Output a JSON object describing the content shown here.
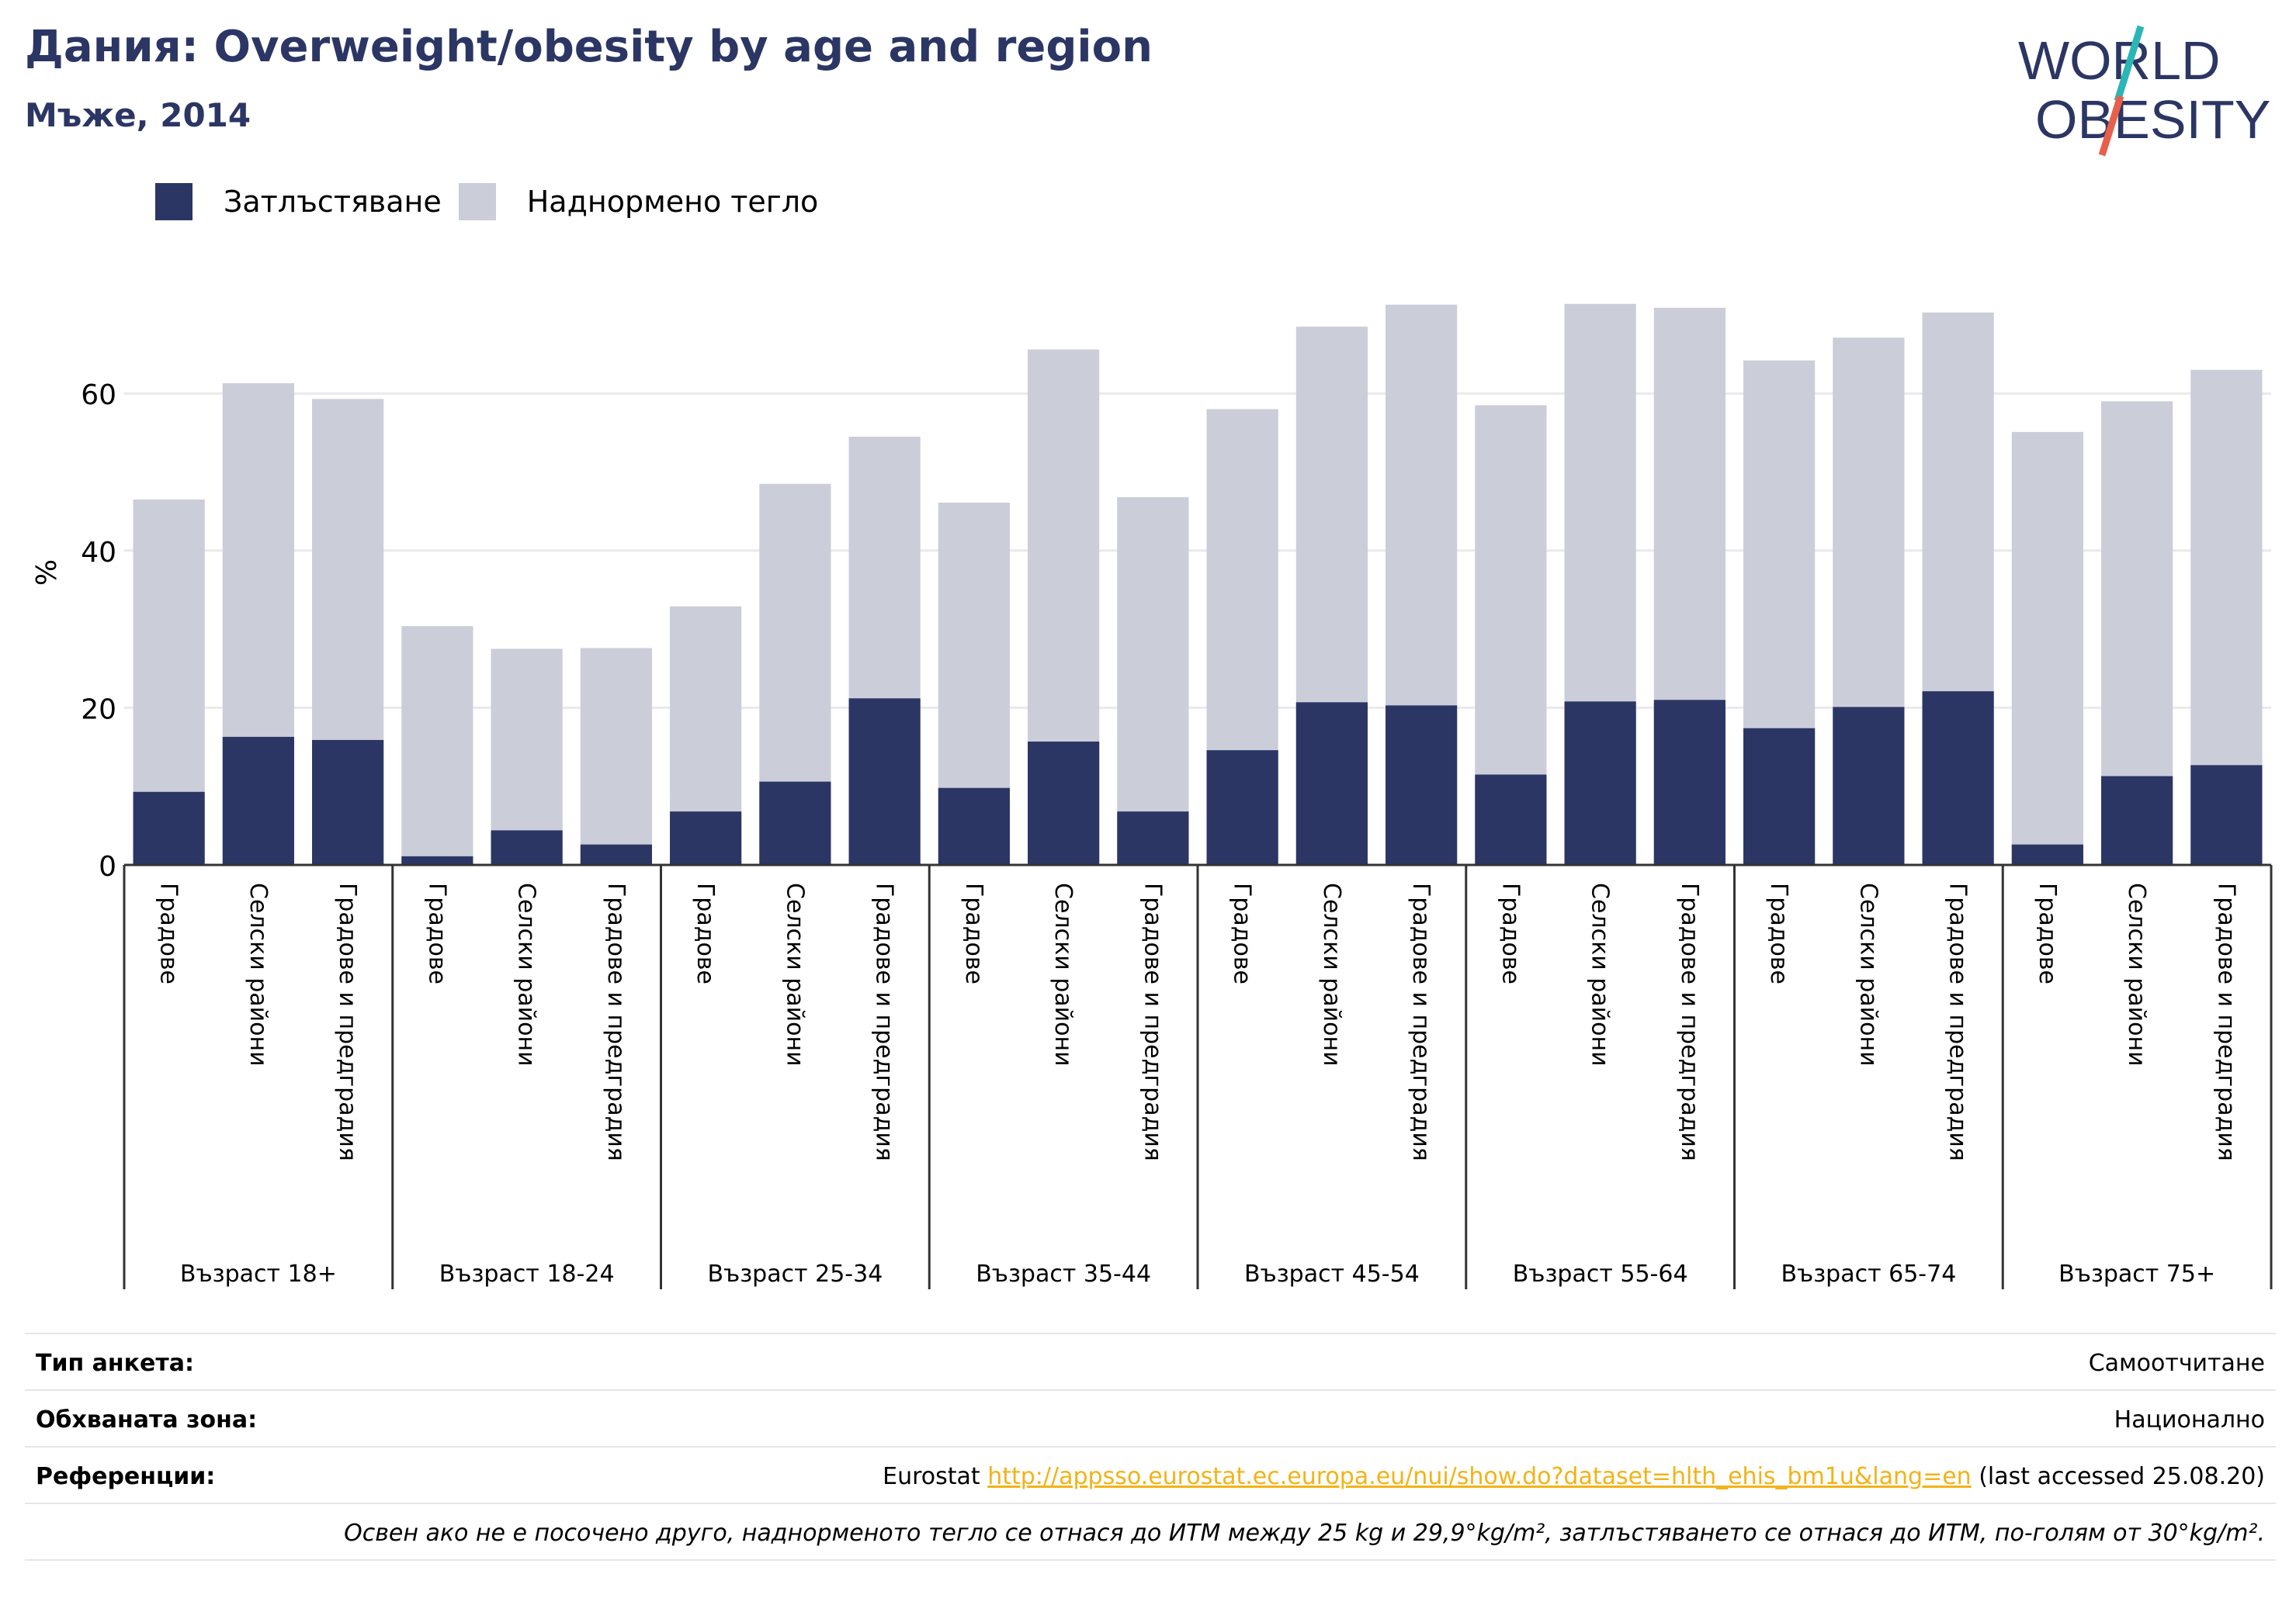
{
  "header": {
    "title": "Дания: Overweight/obesity by age and region",
    "subtitle": "Мъже, 2014"
  },
  "logo": {
    "line1": "WORLD",
    "line2": "OBESITY",
    "colors": {
      "text": "#2b3664",
      "slash_top": "#2bb5b5",
      "slash_bottom": "#e8604c"
    }
  },
  "legend": [
    {
      "label": "Затлъстяване",
      "color": "#2b3664"
    },
    {
      "label": "Наднормено тегло",
      "color": "#cbcdd9"
    }
  ],
  "chart_data": {
    "type": "bar",
    "stacked": false,
    "ylabel": "%",
    "ylim": [
      0,
      75
    ],
    "yticks": [
      0,
      20,
      40,
      60
    ],
    "grid": true,
    "legend_position": "top-left",
    "groups": [
      "Възраст 18+",
      "Възраст 18-24",
      "Възраст 25-34",
      "Възраст 35-44",
      "Възраст 45-54",
      "Възраст 55-64",
      "Възраст 65-74",
      "Възраст 75+"
    ],
    "subcategories": [
      "Градове",
      "Селски райони",
      "Градове и предградия"
    ],
    "series": [
      {
        "name": "Наднормено тегло",
        "color": "#cbcdd9",
        "values": [
          46.5,
          61.3,
          59.3,
          30.4,
          27.5,
          27.6,
          32.9,
          48.5,
          54.5,
          46.1,
          65.6,
          46.8,
          58,
          68.5,
          71.3,
          58.5,
          71.4,
          70.9,
          64.2,
          67.1,
          70.3,
          55.1,
          59,
          63
        ]
      },
      {
        "name": "Затлъстяване",
        "color": "#2b3664",
        "values": [
          9.3,
          16.3,
          15.9,
          1.1,
          4.4,
          2.6,
          6.8,
          10.6,
          21.2,
          9.8,
          15.7,
          6.8,
          14.6,
          20.7,
          20.3,
          11.5,
          20.8,
          21,
          17.4,
          20.1,
          22.1,
          2.6,
          11.3,
          12.7
        ]
      }
    ]
  },
  "meta": {
    "survey_type_label": "Тип анкета:",
    "survey_type_value": "Самоотчитане",
    "coverage_label": "Обхваната зона:",
    "coverage_value": "Национално",
    "references_label": "Референции:",
    "references_prefix": "Eurostat ",
    "references_link": "http://appsso.eurostat.ec.europa.eu/nui/show.do?dataset=hlth_ehis_bm1u&lang=en",
    "references_suffix": " (last accessed 25.08.20)",
    "note": "Освен ако не е посочено друго, наднорменото тегло се отнася до ИТМ между 25 kg и 29,9°kg/m², затлъстяването се отнася до ИТМ, по-голям от 30°kg/m²."
  }
}
